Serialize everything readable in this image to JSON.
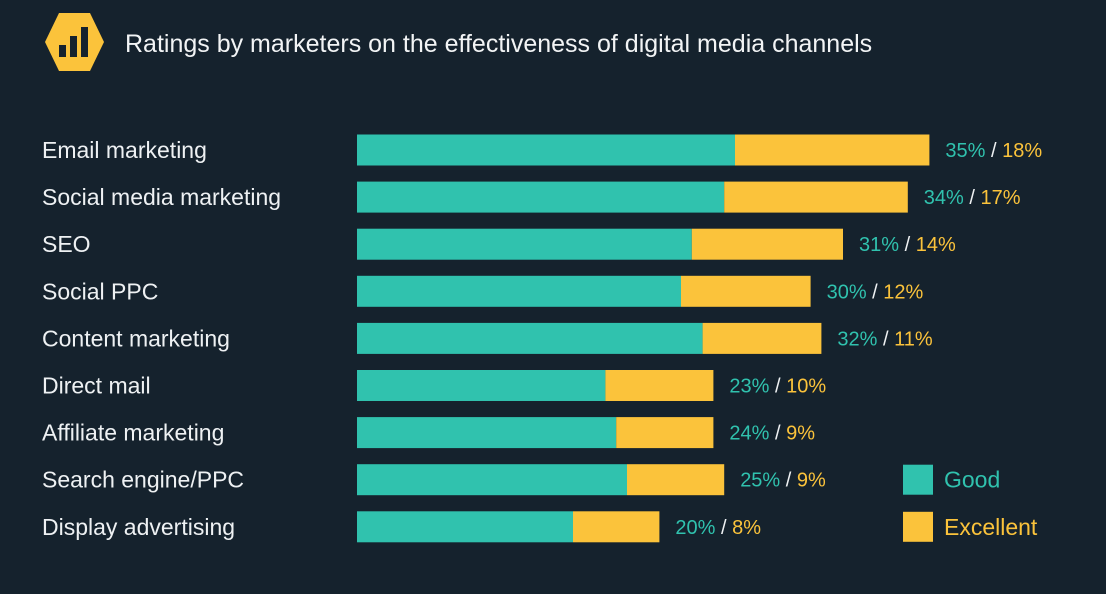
{
  "colors": {
    "background": "#15222d",
    "good": "#30c2ae",
    "excellent": "#fbc33b",
    "text": "#eef1f3",
    "icon_bg": "#fbc33b",
    "icon_fg": "#15222d"
  },
  "icon": "bar-chart-icon",
  "chart_data": {
    "type": "bar",
    "orientation": "horizontal",
    "stacked": true,
    "title": "Ratings by marketers on the effectiveness of digital media channels",
    "categories": [
      "Email marketing",
      "Social media marketing",
      "SEO",
      "Social PPC",
      "Content marketing",
      "Direct mail",
      "Affiliate marketing",
      "Search engine/PPC",
      "Display advertising"
    ],
    "series": [
      {
        "name": "Good",
        "color": "#30c2ae",
        "values": [
          35,
          34,
          31,
          30,
          32,
          23,
          24,
          25,
          20
        ]
      },
      {
        "name": "Excellent",
        "color": "#fbc33b",
        "values": [
          18,
          17,
          14,
          12,
          11,
          10,
          9,
          9,
          8
        ]
      }
    ],
    "value_labels": [
      {
        "good": "35%",
        "excellent": "18%"
      },
      {
        "good": "34%",
        "excellent": "17%"
      },
      {
        "good": "31%",
        "excellent": "14%"
      },
      {
        "good": "30%",
        "excellent": "12%"
      },
      {
        "good": "32%",
        "excellent": "11%"
      },
      {
        "good": "23%",
        "excellent": "10%"
      },
      {
        "good": "24%",
        "excellent": "9%"
      },
      {
        "good": "25%",
        "excellent": "9%"
      },
      {
        "good": "20%",
        "excellent": "8%"
      }
    ],
    "label_separator": " / ",
    "legend": {
      "position": "bottom-right",
      "items": [
        "Good",
        "Excellent"
      ]
    },
    "grid": false,
    "xlim": [
      0,
      53
    ]
  }
}
